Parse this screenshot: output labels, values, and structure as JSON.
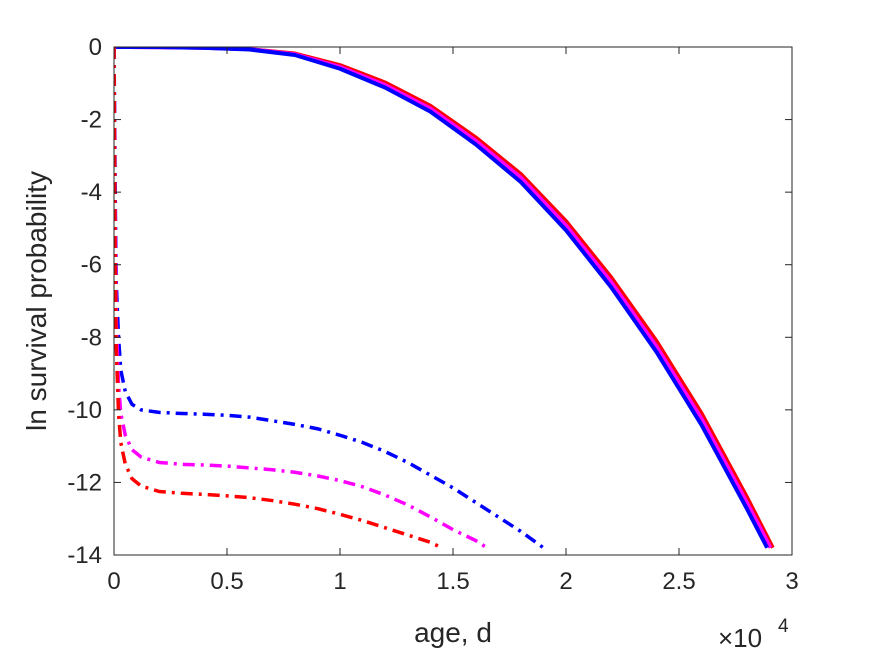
{
  "chart_data": {
    "type": "line",
    "title": "",
    "xlabel": "age, d",
    "ylabel": "ln survival probability",
    "x_multiplier": {
      "base": "×10",
      "exponent": "4"
    },
    "xlim": [
      0,
      30000
    ],
    "ylim": [
      -14,
      0
    ],
    "x_ticks": [
      0,
      5000,
      10000,
      15000,
      20000,
      25000,
      30000
    ],
    "x_tick_labels": [
      "0",
      "0.5",
      "1",
      "1.5",
      "2",
      "2.5",
      "3"
    ],
    "y_ticks": [
      0,
      -2,
      -4,
      -6,
      -8,
      -10,
      -12,
      -14
    ],
    "y_tick_labels": [
      "0",
      "-2",
      "-4",
      "-6",
      "-8",
      "-10",
      "-12",
      "-14"
    ],
    "grid": false,
    "legend": "none",
    "series": [
      {
        "color": "#ff0000",
        "style": "solid",
        "points": [
          [
            0,
            0
          ],
          [
            2000,
            -0.005
          ],
          [
            4000,
            -0.02
          ],
          [
            6000,
            -0.06
          ],
          [
            8000,
            -0.18
          ],
          [
            10000,
            -0.5
          ],
          [
            12000,
            -0.98
          ],
          [
            14000,
            -1.62
          ],
          [
            16000,
            -2.49
          ],
          [
            18000,
            -3.5
          ],
          [
            20000,
            -4.8
          ],
          [
            22000,
            -6.35
          ],
          [
            24000,
            -8.1
          ],
          [
            26000,
            -10.1
          ],
          [
            28000,
            -12.4
          ],
          [
            29150,
            -13.8
          ]
        ]
      },
      {
        "color": "#ff00ff",
        "style": "solid",
        "points": [
          [
            0,
            0
          ],
          [
            2000,
            -0.005
          ],
          [
            4000,
            -0.02
          ],
          [
            6000,
            -0.06
          ],
          [
            8000,
            -0.2
          ],
          [
            10000,
            -0.55
          ],
          [
            12000,
            -1.05
          ],
          [
            14000,
            -1.7
          ],
          [
            16000,
            -2.58
          ],
          [
            18000,
            -3.6
          ],
          [
            20000,
            -4.92
          ],
          [
            22000,
            -6.48
          ],
          [
            24000,
            -8.25
          ],
          [
            26000,
            -10.25
          ],
          [
            28000,
            -12.55
          ],
          [
            29050,
            -13.8
          ]
        ]
      },
      {
        "color": "#0000ff",
        "style": "solid",
        "points": [
          [
            0,
            0
          ],
          [
            2000,
            -0.005
          ],
          [
            4000,
            -0.025
          ],
          [
            6000,
            -0.07
          ],
          [
            8000,
            -0.22
          ],
          [
            10000,
            -0.6
          ],
          [
            12000,
            -1.12
          ],
          [
            14000,
            -1.78
          ],
          [
            16000,
            -2.68
          ],
          [
            18000,
            -3.72
          ],
          [
            20000,
            -5.05
          ],
          [
            22000,
            -6.62
          ],
          [
            24000,
            -8.4
          ],
          [
            26000,
            -10.42
          ],
          [
            28000,
            -12.72
          ],
          [
            28900,
            -13.8
          ]
        ]
      },
      {
        "color": "#0000ff",
        "style": "dashdot",
        "points": [
          [
            0,
            0
          ],
          [
            30,
            -2.0
          ],
          [
            60,
            -4.5
          ],
          [
            100,
            -6.5
          ],
          [
            200,
            -8.0
          ],
          [
            300,
            -8.9
          ],
          [
            500,
            -9.5
          ],
          [
            800,
            -9.85
          ],
          [
            1200,
            -10.0
          ],
          [
            2000,
            -10.07
          ],
          [
            3000,
            -10.1
          ],
          [
            4000,
            -10.12
          ],
          [
            5000,
            -10.15
          ],
          [
            6000,
            -10.2
          ],
          [
            7000,
            -10.3
          ],
          [
            8000,
            -10.4
          ],
          [
            9000,
            -10.52
          ],
          [
            10000,
            -10.7
          ],
          [
            11000,
            -10.9
          ],
          [
            12000,
            -11.15
          ],
          [
            13000,
            -11.45
          ],
          [
            14000,
            -11.8
          ],
          [
            15000,
            -12.15
          ],
          [
            16000,
            -12.55
          ],
          [
            17000,
            -12.95
          ],
          [
            18000,
            -13.35
          ],
          [
            19000,
            -13.8
          ]
        ]
      },
      {
        "color": "#ff00ff",
        "style": "dashdot",
        "points": [
          [
            0,
            0
          ],
          [
            40,
            -4.0
          ],
          [
            100,
            -7.5
          ],
          [
            200,
            -9.3
          ],
          [
            300,
            -10.1
          ],
          [
            500,
            -10.7
          ],
          [
            800,
            -11.1
          ],
          [
            1200,
            -11.3
          ],
          [
            2000,
            -11.45
          ],
          [
            3000,
            -11.5
          ],
          [
            4000,
            -11.52
          ],
          [
            5000,
            -11.55
          ],
          [
            6000,
            -11.6
          ],
          [
            7000,
            -11.65
          ],
          [
            8000,
            -11.72
          ],
          [
            9000,
            -11.82
          ],
          [
            10000,
            -11.95
          ],
          [
            11000,
            -12.12
          ],
          [
            12000,
            -12.35
          ],
          [
            13000,
            -12.62
          ],
          [
            14000,
            -12.95
          ],
          [
            15000,
            -13.3
          ],
          [
            16000,
            -13.6
          ],
          [
            16500,
            -13.8
          ]
        ]
      },
      {
        "color": "#ff0000",
        "style": "dashdot",
        "points": [
          [
            0,
            0
          ],
          [
            50,
            -6.0
          ],
          [
            100,
            -8.3
          ],
          [
            200,
            -10.1
          ],
          [
            300,
            -10.9
          ],
          [
            500,
            -11.5
          ],
          [
            800,
            -11.9
          ],
          [
            1200,
            -12.1
          ],
          [
            2000,
            -12.25
          ],
          [
            3000,
            -12.3
          ],
          [
            4000,
            -12.33
          ],
          [
            5000,
            -12.37
          ],
          [
            6000,
            -12.42
          ],
          [
            7000,
            -12.5
          ],
          [
            8000,
            -12.6
          ],
          [
            9000,
            -12.72
          ],
          [
            10000,
            -12.88
          ],
          [
            11000,
            -13.05
          ],
          [
            12000,
            -13.25
          ],
          [
            13000,
            -13.45
          ],
          [
            14000,
            -13.65
          ],
          [
            14500,
            -13.8
          ]
        ]
      }
    ]
  }
}
